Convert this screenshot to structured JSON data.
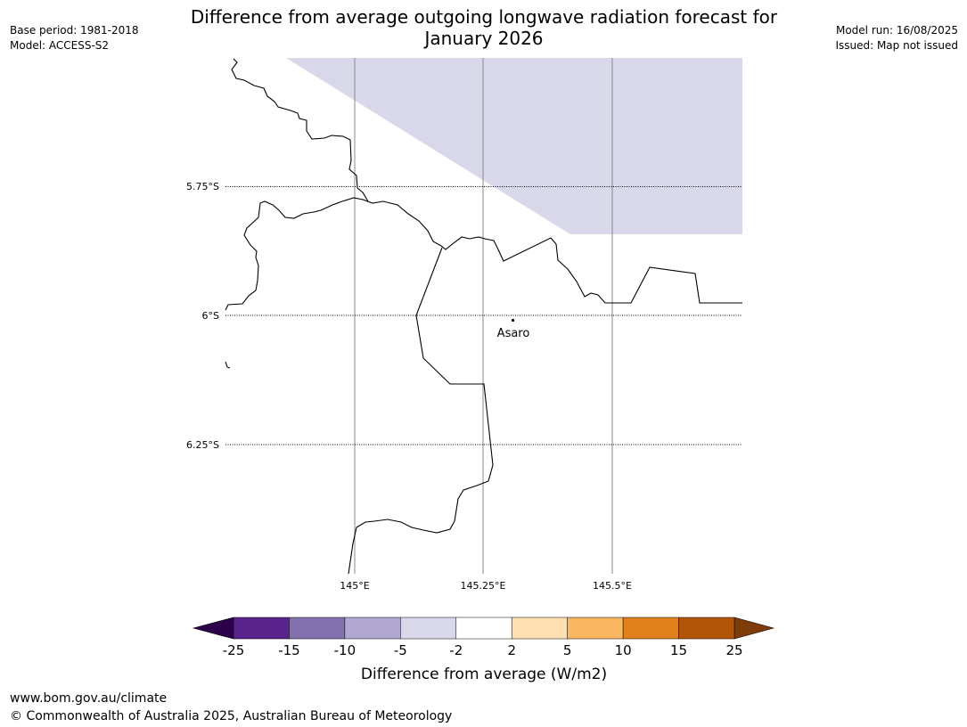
{
  "header": {
    "base_period": "Base period: 1981-2018",
    "model": "Model: ACCESS-S2",
    "model_run": "Model run: 16/08/2025",
    "issued": "Issued: Map not issued"
  },
  "title": {
    "line1": "Difference from average outgoing longwave radiation forecast for",
    "line2": "January 2026"
  },
  "map": {
    "lat_labels": [
      "5.75°S",
      "6°S",
      "6.25°S"
    ],
    "lon_labels": [
      "145°E",
      "145.25°E",
      "145.5°E"
    ],
    "place": {
      "name": "Asaro"
    },
    "shaded_category": "-5 to -2",
    "shade_color": "#d8d8ea"
  },
  "colorbar": {
    "title": "Difference from average (W/m2)",
    "tick_labels": [
      "-25",
      "-15",
      "-10",
      "-5",
      "-2",
      "2",
      "5",
      "10",
      "15",
      "25"
    ],
    "colors": [
      "#58238b",
      "#8271ae",
      "#b1a8d2",
      "#d8d8ea",
      "#ffffff",
      "#fde0b2",
      "#fab660",
      "#e0811b",
      "#b35506"
    ],
    "under_color": "#2d004b",
    "over_color": "#7f3b08"
  },
  "footer": {
    "url": "www.bom.gov.au/climate",
    "copyright": "© Commonwealth of Australia 2025, Australian Bureau of Meteorology"
  }
}
